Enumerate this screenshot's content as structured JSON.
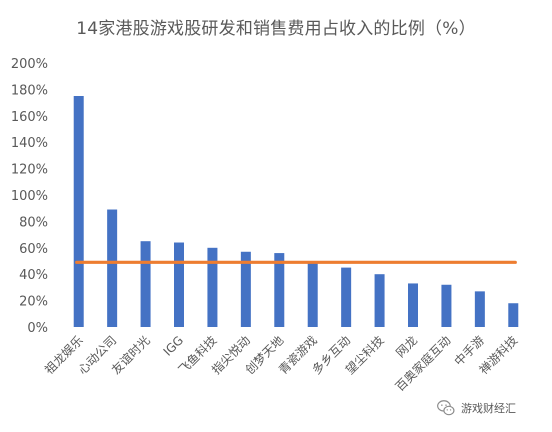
{
  "chart_data": {
    "type": "bar",
    "title": "14家港股游戏股研发和销售费用占收入的比例（%）",
    "categories": [
      "祖龙娱乐",
      "心动公司",
      "友谊时光",
      "IGG",
      "飞鱼科技",
      "指尖悦动",
      "创梦天地",
      "青瓷游戏",
      "多乡互动",
      "望尘科技",
      "网龙",
      "百奥家庭互动",
      "中手游",
      "禅游科技"
    ],
    "values": [
      175,
      89,
      65,
      64,
      60,
      57,
      56,
      49,
      45,
      40,
      33,
      32,
      27,
      18
    ],
    "reference_line": 49,
    "ylim": [
      0,
      200
    ],
    "yticks": [
      0,
      20,
      40,
      60,
      80,
      100,
      120,
      140,
      160,
      180,
      200
    ],
    "ytick_labels": [
      "0%",
      "20%",
      "40%",
      "60%",
      "80%",
      "100%",
      "120%",
      "140%",
      "160%",
      "180%",
      "200%"
    ],
    "grid": false,
    "legend": "none",
    "bar_color": "#4472C4",
    "line_color": "#ED7D31"
  },
  "watermark": {
    "text": "游戏财经汇",
    "icon": "wechat-icon"
  }
}
